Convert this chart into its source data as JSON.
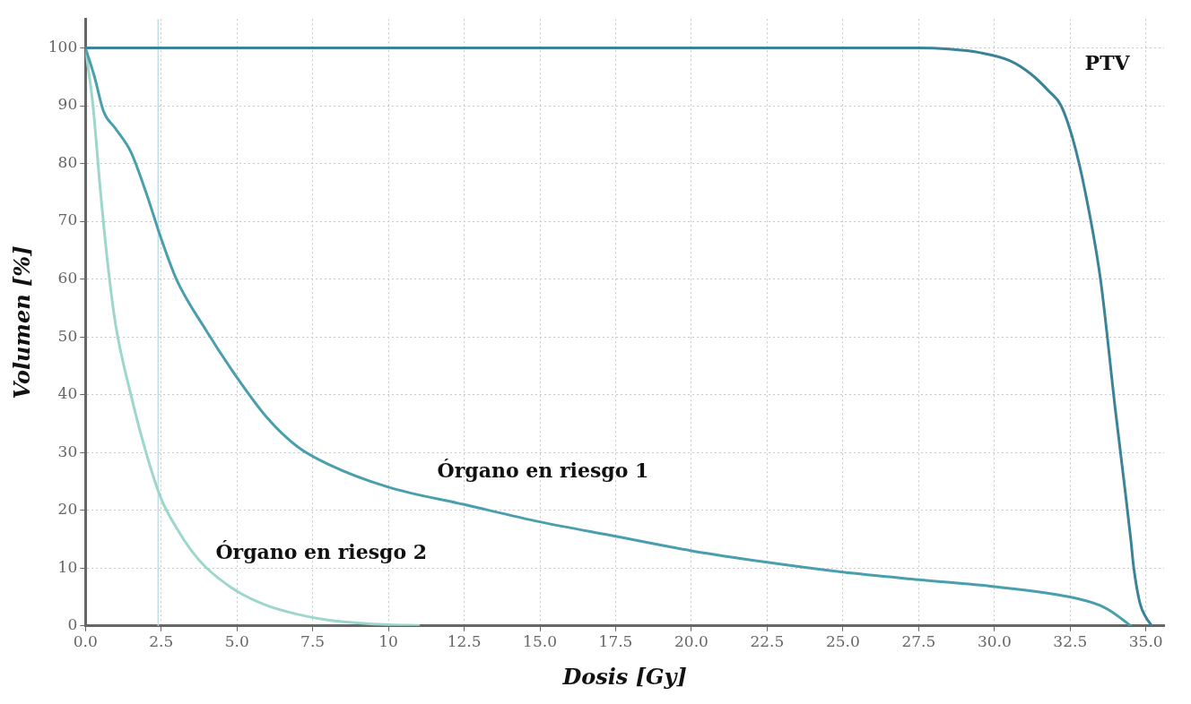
{
  "chart_data": {
    "type": "line",
    "xlabel": "Dosis [Gy]",
    "ylabel": "Volumen [%]",
    "xlim": [
      0,
      35.6
    ],
    "ylim": [
      0,
      105
    ],
    "xticks": [
      {
        "value": 0,
        "label": "0.0"
      },
      {
        "value": 2.5,
        "label": "2.5"
      },
      {
        "value": 5,
        "label": "5.0"
      },
      {
        "value": 7.5,
        "label": "7.5"
      },
      10,
      {
        "value": 12.5,
        "label": "12.5"
      },
      {
        "value": 15,
        "label": "15.0"
      },
      {
        "value": 17.5,
        "label": "17.5"
      },
      {
        "value": 20,
        "label": "20.0"
      },
      {
        "value": 22.5,
        "label": "22.5"
      },
      {
        "value": 25,
        "label": "25.0"
      },
      {
        "value": 27.5,
        "label": "27.5"
      },
      {
        "value": 30,
        "label": "30.0"
      },
      {
        "value": 32.5,
        "label": "32.5"
      },
      {
        "value": 35,
        "label": "35.0"
      }
    ],
    "yticks": [
      0,
      10,
      20,
      30,
      40,
      50,
      60,
      70,
      80,
      90,
      100
    ],
    "grid": true,
    "marker": "none",
    "line_style": "solid",
    "legend": false,
    "ref_lines": [
      {
        "axis": "x",
        "value": 2.4,
        "color": "#bfdde6"
      }
    ],
    "series": [
      {
        "name": "PTV",
        "color": "#3a8399",
        "x": [
          0,
          10,
          20,
          27.5,
          28.5,
          29.5,
          30.5,
          31.2,
          31.8,
          32.2,
          32.6,
          33,
          33.5,
          34,
          34.3,
          34.5,
          34.6,
          34.8,
          35,
          35.2
        ],
        "values": [
          100,
          100,
          100,
          100,
          99.8,
          99.2,
          97.8,
          95.5,
          92.5,
          90,
          84,
          75,
          60,
          37,
          24,
          15,
          10,
          4,
          1.5,
          0
        ]
      },
      {
        "name": "Órgano en riesgo 1",
        "color": "#4a9fae",
        "x": [
          0,
          0.3,
          0.6,
          1,
          1.5,
          2,
          2.5,
          3,
          4,
          5,
          6,
          7,
          8,
          10,
          12.5,
          15,
          17.5,
          20,
          22.5,
          25,
          27.5,
          30,
          32.5,
          33.5,
          34,
          34.5
        ],
        "values": [
          100,
          95,
          89,
          86,
          82,
          75,
          67,
          60,
          51,
          43,
          36,
          31,
          28,
          24,
          21,
          18,
          15.5,
          13,
          11,
          9.3,
          8,
          6.8,
          5,
          3.5,
          2,
          0
        ]
      },
      {
        "name": "Órgano en riesgo 2",
        "color": "#9dd6cc",
        "x": [
          0,
          0.25,
          0.5,
          0.75,
          1,
          1.5,
          2,
          2.5,
          3,
          3.5,
          4,
          5,
          6,
          7,
          8,
          9,
          10,
          11
        ],
        "values": [
          100,
          90,
          75,
          62,
          52,
          40,
          30,
          22,
          17,
          13,
          10,
          6,
          3.5,
          2,
          1,
          0.5,
          0.2,
          0.1
        ]
      }
    ]
  }
}
